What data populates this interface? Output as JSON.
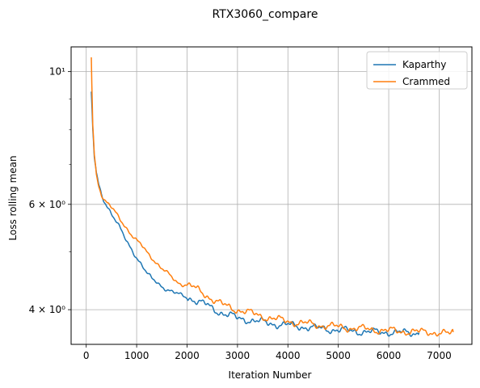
{
  "chart_data": {
    "type": "line",
    "title": "RTX3060_compare",
    "xlabel": "Iteration Number",
    "ylabel": "Loss rolling mean",
    "xlim": [
      -300,
      7650
    ],
    "ylim": [
      3.5,
      11.0
    ],
    "yscale": "log",
    "grid": true,
    "legend_position": "top-right",
    "x_ticks": [
      0,
      1000,
      2000,
      3000,
      4000,
      5000,
      6000,
      7000
    ],
    "x_tick_labels": [
      "0",
      "1000",
      "2000",
      "3000",
      "4000",
      "5000",
      "6000",
      "7000"
    ],
    "y_major_ticks": [
      4,
      6,
      10
    ],
    "y_major_tick_labels": [
      "4 × 10⁰",
      "6 × 10⁰",
      "10¹"
    ],
    "y_minor_ticks": [
      5,
      7,
      8,
      9
    ],
    "series": [
      {
        "name": "Kaparthy",
        "color": "#1f77b4",
        "x": [
          100,
          130,
          160,
          200,
          250,
          300,
          350,
          400,
          500,
          600,
          700,
          800,
          900,
          1000,
          1100,
          1200,
          1300,
          1400,
          1500,
          1600,
          1700,
          1800,
          1900,
          2000,
          2100,
          2200,
          2300,
          2400,
          2500,
          2600,
          2700,
          2800,
          2900,
          3000,
          3200,
          3400,
          3600,
          3800,
          4000,
          4200,
          4400,
          4600,
          4800,
          5000,
          5200,
          5400,
          5600,
          5800,
          6000,
          6200,
          6400,
          6600
        ],
        "y": [
          9.2,
          8.0,
          7.2,
          6.75,
          6.45,
          6.25,
          6.1,
          6.0,
          5.8,
          5.6,
          5.4,
          5.2,
          5.05,
          4.9,
          4.75,
          4.6,
          4.5,
          4.45,
          4.38,
          4.33,
          4.28,
          4.25,
          4.22,
          4.2,
          4.17,
          4.13,
          4.1,
          4.07,
          4.02,
          3.98,
          3.95,
          3.92,
          3.9,
          3.87,
          3.85,
          3.82,
          3.8,
          3.78,
          3.77,
          3.75,
          3.74,
          3.72,
          3.71,
          3.7,
          3.69,
          3.68,
          3.67,
          3.67,
          3.67,
          3.66,
          3.66,
          3.66
        ]
      },
      {
        "name": "Crammed",
        "color": "#ff7f0e",
        "x": [
          100,
          110,
          130,
          160,
          200,
          250,
          300,
          350,
          400,
          500,
          600,
          700,
          800,
          900,
          1000,
          1100,
          1200,
          1300,
          1400,
          1500,
          1600,
          1700,
          1800,
          1900,
          2000,
          2100,
          2200,
          2300,
          2400,
          2500,
          2600,
          2700,
          2800,
          2900,
          3000,
          3200,
          3400,
          3600,
          3800,
          4000,
          4200,
          4400,
          4600,
          4800,
          5000,
          5200,
          5400,
          5600,
          5800,
          6000,
          6200,
          6400,
          6600,
          6800,
          7000,
          7100,
          7200,
          7280
        ],
        "y": [
          10.6,
          9.6,
          8.2,
          7.3,
          6.75,
          6.45,
          6.25,
          6.1,
          6.03,
          5.92,
          5.78,
          5.64,
          5.48,
          5.33,
          5.2,
          5.12,
          5.0,
          4.9,
          4.78,
          4.68,
          4.6,
          4.53,
          4.45,
          4.42,
          4.4,
          4.37,
          4.32,
          4.27,
          4.22,
          4.17,
          4.12,
          4.08,
          4.05,
          4.02,
          4.0,
          3.96,
          3.92,
          3.88,
          3.85,
          3.83,
          3.8,
          3.79,
          3.77,
          3.76,
          3.74,
          3.73,
          3.72,
          3.71,
          3.7,
          3.69,
          3.68,
          3.68,
          3.67,
          3.67,
          3.66,
          3.65,
          3.64,
          3.67
        ]
      }
    ]
  }
}
